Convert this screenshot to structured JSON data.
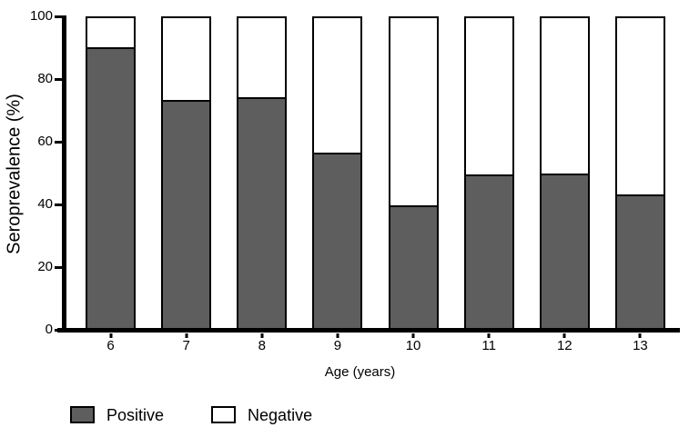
{
  "chart_data": {
    "type": "bar",
    "stacked": true,
    "title": "",
    "xlabel": "Age (years)",
    "ylabel": "Seroprevalence (%)",
    "categories": [
      "6",
      "7",
      "8",
      "9",
      "10",
      "11",
      "12",
      "13"
    ],
    "series": [
      {
        "name": "Positive",
        "color": "#5e5e5e",
        "values": [
          90.5,
          73.5,
          74.5,
          56.5,
          39.5,
          49.5,
          50,
          43
        ]
      },
      {
        "name": "Negative",
        "color": "#ffffff",
        "values": [
          9.5,
          26.5,
          25.5,
          43.5,
          60.5,
          50.5,
          50,
          57
        ]
      }
    ],
    "ylim": [
      0,
      100
    ],
    "yticks": [
      0,
      20,
      40,
      60,
      80,
      100
    ],
    "grid": false,
    "legend_position": "bottom-left",
    "axis_color": "#000000",
    "bar_border_color": "#000000",
    "background": "#ffffff"
  },
  "legend": {
    "items": [
      {
        "label": "Positive",
        "color": "#5e5e5e"
      },
      {
        "label": "Negative",
        "color": "#ffffff"
      }
    ]
  }
}
